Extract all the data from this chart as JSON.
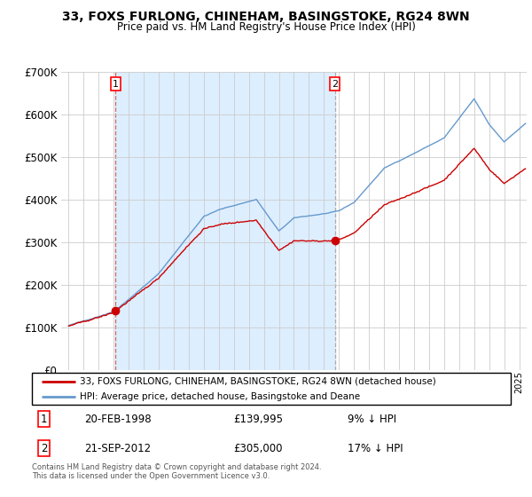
{
  "title": "33, FOXS FURLONG, CHINEHAM, BASINGSTOKE, RG24 8WN",
  "subtitle": "Price paid vs. HM Land Registry's House Price Index (HPI)",
  "legend_line1": "33, FOXS FURLONG, CHINEHAM, BASINGSTOKE, RG24 8WN (detached house)",
  "legend_line2": "HPI: Average price, detached house, Basingstoke and Deane",
  "footnote": "Contains HM Land Registry data © Crown copyright and database right 2024.\nThis data is licensed under the Open Government Licence v3.0.",
  "sale1_date": "20-FEB-1998",
  "sale1_price": "£139,995",
  "sale1_hpi": "9% ↓ HPI",
  "sale2_date": "21-SEP-2012",
  "sale2_price": "£305,000",
  "sale2_hpi": "17% ↓ HPI",
  "sale1_x": 1998.13,
  "sale1_y": 139995,
  "sale2_x": 2012.72,
  "sale2_y": 305000,
  "ylim": [
    0,
    700000
  ],
  "xlim": [
    1994.5,
    2025.5
  ],
  "hpi_color": "#6699cc",
  "price_color": "#cc0000",
  "bg_shade_color": "#ddeeff",
  "background_color": "#ffffff",
  "grid_color": "#cccccc",
  "title_fontsize": 10,
  "subtitle_fontsize": 8.5
}
